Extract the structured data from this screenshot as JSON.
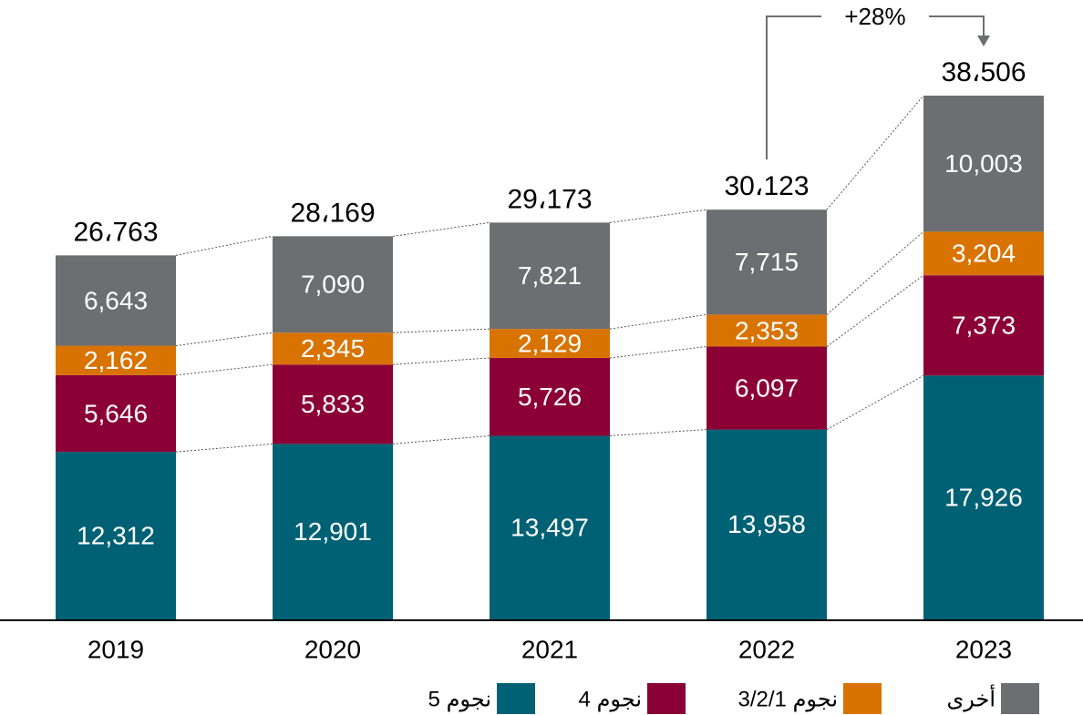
{
  "chart_data": {
    "type": "stacked_bar",
    "annotation": "+28%",
    "categories": [
      "2019",
      "2020",
      "2021",
      "2022",
      "2023"
    ],
    "series": [
      {
        "name": "5 نجوم",
        "color": "#006175",
        "values": [
          12312,
          12901,
          13497,
          13958,
          17926
        ],
        "value_labels": [
          "12,312",
          "12,901",
          "13,497",
          "13,958",
          "17,926"
        ]
      },
      {
        "name": "4 نجوم",
        "color": "#8b0035",
        "values": [
          5646,
          5833,
          5726,
          6097,
          7373
        ],
        "value_labels": [
          "5,646",
          "5,833",
          "5,726",
          "6,097",
          "7,373"
        ]
      },
      {
        "name": "3/2/1 نجوم",
        "color": "#d97300",
        "values": [
          2162,
          2345,
          2129,
          2353,
          3204
        ],
        "value_labels": [
          "2,162",
          "2,345",
          "2,129",
          "2,353",
          "3,204"
        ]
      },
      {
        "name": "أخرى",
        "color": "#6d6e71",
        "values": [
          6643,
          7090,
          7821,
          7715,
          10003
        ],
        "value_labels": [
          "6,643",
          "7,090",
          "7,821",
          "7,715",
          "10,003"
        ]
      }
    ],
    "totals": [
      26763,
      28169,
      29173,
      30123,
      38506
    ],
    "total_labels": [
      "26،763",
      "28،169",
      "29،173",
      "30،123",
      "38،506"
    ]
  }
}
